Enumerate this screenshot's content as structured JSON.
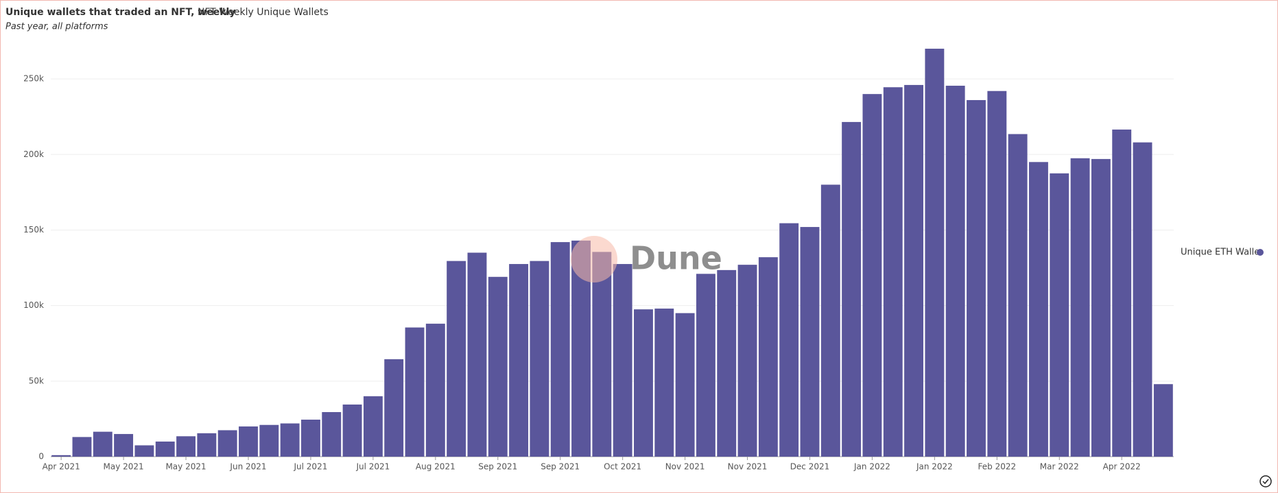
{
  "chart_data": {
    "type": "bar",
    "title": "Unique wallets that traded an NFT, weekly",
    "tab": "NFT Weekly Unique Wallets",
    "subtitle": "Past year, all platforms",
    "watermark": "Dune",
    "categories": [
      "Apr 2021",
      null,
      null,
      "May 2021",
      null,
      null,
      "May 2021",
      null,
      null,
      "Jun 2021",
      null,
      null,
      "Jul 2021",
      null,
      null,
      "Jul 2021",
      null,
      null,
      "Aug 2021",
      null,
      null,
      "Sep 2021",
      null,
      null,
      "Sep 2021",
      null,
      null,
      "Oct 2021",
      null,
      null,
      "Nov 2021",
      null,
      null,
      "Nov 2021",
      null,
      null,
      "Dec 2021",
      null,
      null,
      "Jan 2022",
      null,
      null,
      "Jan 2022",
      null,
      null,
      "Feb 2022",
      null,
      null,
      "Mar 2022",
      null,
      null,
      "Apr 2022",
      null,
      null
    ],
    "series": [
      {
        "name": "Unique ETH Walle",
        "color": "#5a569b",
        "values": [
          1000,
          13000,
          16500,
          15000,
          7500,
          10000,
          13500,
          15500,
          17500,
          20000,
          21000,
          22000,
          24500,
          29500,
          34500,
          40000,
          64500,
          85500,
          88000,
          129500,
          135000,
          119000,
          127500,
          129500,
          142000,
          143000,
          135500,
          127500,
          97500,
          98000,
          95000,
          121000,
          123500,
          127000,
          132000,
          154500,
          152000,
          180000,
          221500,
          240000,
          244500,
          246000,
          270000,
          245500,
          236000,
          242000,
          213500,
          195000,
          187500,
          197500,
          197000,
          216500,
          208000,
          48000
        ]
      }
    ],
    "ylim": [
      0,
      280000
    ],
    "yticks": [
      {
        "value": 0,
        "label": "0"
      },
      {
        "value": 50000,
        "label": "50k"
      },
      {
        "value": 100000,
        "label": "100k"
      },
      {
        "value": 150000,
        "label": "150k"
      },
      {
        "value": 200000,
        "label": "200k"
      },
      {
        "value": 250000,
        "label": "250k"
      }
    ],
    "grid": true,
    "legend": "right"
  }
}
